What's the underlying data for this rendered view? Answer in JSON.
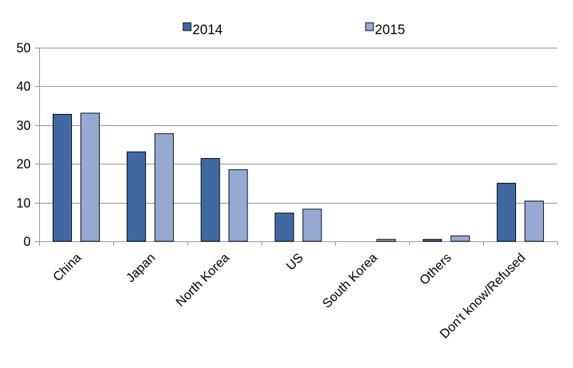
{
  "chart_data": {
    "type": "bar",
    "categories": [
      "China",
      "Japan",
      "North Korea",
      "US",
      "South Korea",
      "Others",
      "Don't know/Refused"
    ],
    "series": [
      {
        "name": "2014",
        "color": "#4169A1",
        "values": [
          32.8,
          23.1,
          21.4,
          7.3,
          0,
          0.5,
          15.0
        ]
      },
      {
        "name": "2015",
        "color": "#95A9D3",
        "values": [
          33.1,
          27.8,
          18.5,
          8.3,
          0.5,
          1.4,
          10.4
        ]
      }
    ],
    "ylim": [
      0,
      50
    ],
    "yticks": [
      0,
      10,
      20,
      30,
      40,
      50
    ],
    "grid": true,
    "legend_position": "top"
  }
}
